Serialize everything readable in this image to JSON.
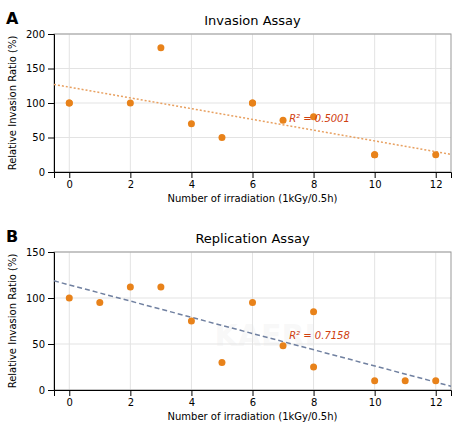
{
  "chart_data": [
    {
      "type": "scatter",
      "title": "Invasion Assay",
      "panel_label": "A",
      "x_label": "Number of irradiation (1kGy/0.5h)",
      "y_label": "Relative Invasion Ratio (%)",
      "xlim": [
        -0.5,
        12.5
      ],
      "ylim": [
        0,
        200
      ],
      "xticks": [
        0,
        2,
        4,
        6,
        8,
        10,
        12
      ],
      "yticks": [
        0,
        50,
        100,
        150,
        200
      ],
      "grid": true,
      "series": [
        {
          "type": "scatter",
          "marker": "circle",
          "color": "#E8821A",
          "x": [
            0,
            0,
            2,
            3,
            4,
            5,
            6,
            6,
            7,
            8,
            10,
            10,
            12
          ],
          "values": [
            100,
            100,
            100,
            180,
            70,
            50,
            100,
            100,
            75,
            80,
            25,
            25,
            25
          ]
        },
        {
          "type": "line",
          "line_style": "dotted",
          "color": "#E8A060",
          "x": [
            -0.5,
            12.5
          ],
          "values": [
            126.89,
            25.5767
          ]
        }
      ],
      "annotations": [
        {
          "text": "R² = 0.5001",
          "x": 7.2,
          "y": 72,
          "color": "#D04010"
        }
      ]
    },
    {
      "type": "scatter",
      "title": "Replication Assay",
      "panel_label": "B",
      "x_label": "Number of irradiation (1kGy/0.5h)",
      "y_label": "Relative Invasion Ratio (%)",
      "xlim": [
        -0.5,
        12.5
      ],
      "ylim": [
        0,
        150
      ],
      "xticks": [
        0,
        2,
        4,
        6,
        8,
        10,
        12
      ],
      "yticks": [
        0,
        50,
        100,
        150
      ],
      "grid": true,
      "series": [
        {
          "type": "scatter",
          "marker": "circle",
          "color": "#E8821A",
          "x": [
            0,
            1,
            2,
            3,
            4,
            5,
            6,
            7,
            8,
            8,
            10,
            11,
            12
          ],
          "values": [
            100,
            95,
            112,
            112,
            75,
            30,
            95,
            48,
            25,
            85,
            10,
            10,
            10
          ]
        },
        {
          "type": "line",
          "line_style": "dashed",
          "color": "#7080A0",
          "x": [
            -0.5,
            12.5
          ],
          "values": [
            118.6726,
            4.1257
          ]
        }
      ],
      "annotations": [
        {
          "text": "R² = 0.7158",
          "x": 7.2,
          "y": 55,
          "color": "#D04010"
        }
      ]
    }
  ],
  "watermark": {
    "text": "KAERI",
    "color": "#CCCCCC"
  }
}
